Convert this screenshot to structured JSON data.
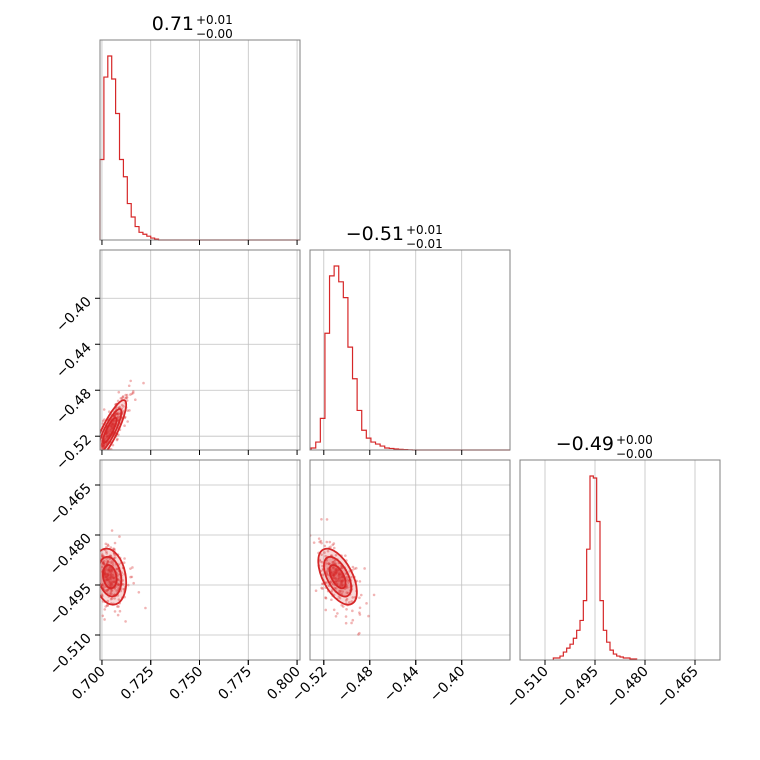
{
  "chart_data": {
    "type": "corner",
    "color": "#d62728",
    "params": [
      {
        "median": 0.71,
        "title": {
          "main": "0.71",
          "plus": "+0.01",
          "minus": "−0.00"
        },
        "ticks": [
          0.7,
          0.725,
          0.75,
          0.775,
          0.8
        ],
        "tick_labels": [
          "0.700",
          "0.725",
          "0.750",
          "0.775",
          "0.800"
        ],
        "range": [
          0.699,
          0.8015
        ],
        "hist": {
          "bins": [
            0.699,
            0.701,
            0.703,
            0.705,
            0.707,
            0.709,
            0.711,
            0.713,
            0.715,
            0.717,
            0.719,
            0.721,
            0.723,
            0.725,
            0.727,
            0.729
          ],
          "counts": [
            0.42,
            0.85,
            0.96,
            0.84,
            0.66,
            0.42,
            0.33,
            0.19,
            0.12,
            0.07,
            0.04,
            0.03,
            0.02,
            0.01,
            0.005
          ]
        }
      },
      {
        "median": -0.51,
        "title": {
          "main": "−0.51",
          "plus": "+0.01",
          "minus": "−0.01"
        },
        "ticks": [
          -0.52,
          -0.48,
          -0.44,
          -0.4
        ],
        "tick_labels": [
          "−0.52",
          "−0.48",
          "−0.44",
          "−0.40"
        ],
        "range": [
          -0.532,
          -0.358
        ],
        "hist": {
          "bins": [
            -0.531,
            -0.527,
            -0.523,
            -0.519,
            -0.515,
            -0.511,
            -0.507,
            -0.503,
            -0.499,
            -0.495,
            -0.491,
            -0.487,
            -0.483,
            -0.479,
            -0.475,
            -0.471,
            -0.467,
            -0.463,
            -0.459,
            -0.455,
            -0.451,
            -0.447,
            -0.443
          ],
          "counts": [
            0.01,
            0.04,
            0.16,
            0.59,
            0.88,
            0.93,
            0.85,
            0.77,
            0.52,
            0.36,
            0.2,
            0.1,
            0.06,
            0.04,
            0.03,
            0.02,
            0.01,
            0.008,
            0.005,
            0.003,
            0.002,
            0.001
          ]
        }
      },
      {
        "median": -0.49,
        "title": {
          "main": "−0.49",
          "plus": "+0.00",
          "minus": "−0.00"
        },
        "ticks": [
          -0.51,
          -0.495,
          -0.48,
          -0.465
        ],
        "tick_labels": [
          "−0.510",
          "−0.495",
          "−0.480",
          "−0.465"
        ],
        "range": [
          -0.5175,
          -0.4575
        ],
        "hist": {
          "bins": [
            -0.5075,
            -0.5065,
            -0.5055,
            -0.5045,
            -0.5035,
            -0.5025,
            -0.5015,
            -0.5005,
            -0.4995,
            -0.4985,
            -0.4975,
            -0.4965,
            -0.4955,
            -0.4945,
            -0.4935,
            -0.4925,
            -0.4915,
            -0.4905,
            -0.4895,
            -0.4885,
            -0.4875,
            -0.4865,
            -0.4855,
            -0.4845,
            -0.4835,
            -0.4825
          ],
          "counts": [
            0.01,
            0.01,
            0.02,
            0.04,
            0.06,
            0.08,
            0.11,
            0.15,
            0.2,
            0.3,
            0.56,
            0.93,
            0.92,
            0.7,
            0.3,
            0.15,
            0.09,
            0.05,
            0.03,
            0.02,
            0.015,
            0.01,
            0.01,
            0.005,
            0.005,
            0.003
          ]
        }
      }
    ],
    "pairs": [
      {
        "row": 1,
        "col": 0,
        "mean": [
          0.704,
          -0.515
        ],
        "sd": [
          0.0035,
          0.011
        ],
        "corr": 0.85
      },
      {
        "row": 2,
        "col": 0,
        "mean": [
          0.704,
          -0.4925
        ],
        "sd": [
          0.0035,
          0.0035
        ],
        "corr": -0.2
      },
      {
        "row": 2,
        "col": 1,
        "mean": [
          -0.508,
          -0.4925
        ],
        "sd": [
          0.007,
          0.0035
        ],
        "corr": -0.55
      }
    ]
  }
}
